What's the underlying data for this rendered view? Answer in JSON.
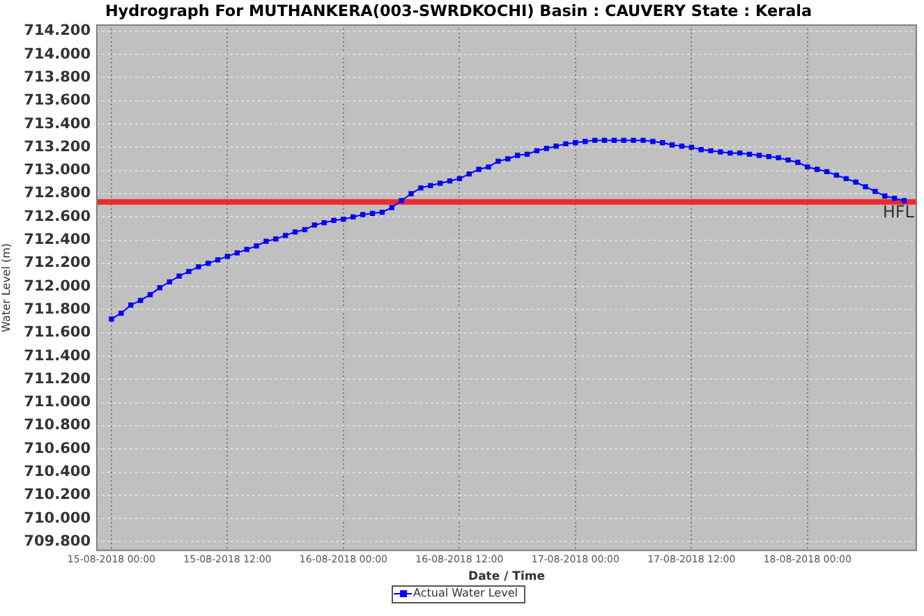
{
  "chart_data": {
    "type": "line",
    "title": "Hydrograph For MUTHANKERA(003-SWRDKOCHI) Basin : CAUVERY State : Kerala",
    "xlabel": "Date / Time",
    "ylabel": "Water Level (m)",
    "x": [
      "2018-08-15T00:00",
      "2018-08-15T01:00",
      "2018-08-15T02:00",
      "2018-08-15T03:00",
      "2018-08-15T04:00",
      "2018-08-15T05:00",
      "2018-08-15T06:00",
      "2018-08-15T07:00",
      "2018-08-15T08:00",
      "2018-08-15T09:00",
      "2018-08-15T10:00",
      "2018-08-15T11:00",
      "2018-08-15T12:00",
      "2018-08-15T13:00",
      "2018-08-15T14:00",
      "2018-08-15T15:00",
      "2018-08-15T16:00",
      "2018-08-15T17:00",
      "2018-08-15T18:00",
      "2018-08-15T19:00",
      "2018-08-15T20:00",
      "2018-08-15T21:00",
      "2018-08-15T22:00",
      "2018-08-15T23:00",
      "2018-08-16T00:00",
      "2018-08-16T01:00",
      "2018-08-16T02:00",
      "2018-08-16T03:00",
      "2018-08-16T04:00",
      "2018-08-16T05:00",
      "2018-08-16T06:00",
      "2018-08-16T07:00",
      "2018-08-16T08:00",
      "2018-08-16T09:00",
      "2018-08-16T10:00",
      "2018-08-16T11:00",
      "2018-08-16T12:00",
      "2018-08-16T13:00",
      "2018-08-16T14:00",
      "2018-08-16T15:00",
      "2018-08-16T16:00",
      "2018-08-16T17:00",
      "2018-08-16T18:00",
      "2018-08-16T19:00",
      "2018-08-16T20:00",
      "2018-08-16T21:00",
      "2018-08-16T22:00",
      "2018-08-16T23:00",
      "2018-08-17T00:00",
      "2018-08-17T01:00",
      "2018-08-17T02:00",
      "2018-08-17T03:00",
      "2018-08-17T04:00",
      "2018-08-17T05:00",
      "2018-08-17T06:00",
      "2018-08-17T07:00",
      "2018-08-17T08:00",
      "2018-08-17T09:00",
      "2018-08-17T10:00",
      "2018-08-17T11:00",
      "2018-08-17T12:00",
      "2018-08-17T13:00",
      "2018-08-17T14:00",
      "2018-08-17T15:00",
      "2018-08-17T16:00",
      "2018-08-17T17:00",
      "2018-08-17T18:00",
      "2018-08-17T19:00",
      "2018-08-17T20:00",
      "2018-08-17T21:00",
      "2018-08-17T22:00",
      "2018-08-17T23:00",
      "2018-08-18T00:00",
      "2018-08-18T01:00",
      "2018-08-18T02:00",
      "2018-08-18T03:00",
      "2018-08-18T04:00",
      "2018-08-18T05:00",
      "2018-08-18T06:00",
      "2018-08-18T07:00",
      "2018-08-18T08:00",
      "2018-08-18T09:00",
      "2018-08-18T10:00"
    ],
    "series": [
      {
        "name": "Actual Water Level",
        "color": "#0000ff",
        "values": [
          711.72,
          711.77,
          711.84,
          711.88,
          711.93,
          711.99,
          712.04,
          712.09,
          712.13,
          712.17,
          712.2,
          712.23,
          712.26,
          712.29,
          712.32,
          712.35,
          712.39,
          712.41,
          712.44,
          712.47,
          712.49,
          712.53,
          712.55,
          712.57,
          712.58,
          712.6,
          712.62,
          712.63,
          712.64,
          712.68,
          712.74,
          712.8,
          712.85,
          712.87,
          712.89,
          712.91,
          712.93,
          712.97,
          713.01,
          713.03,
          713.08,
          713.1,
          713.13,
          713.14,
          713.17,
          713.19,
          713.21,
          713.23,
          713.24,
          713.25,
          713.26,
          713.26,
          713.26,
          713.26,
          713.26,
          713.26,
          713.25,
          713.24,
          713.22,
          713.21,
          713.2,
          713.18,
          713.17,
          713.16,
          713.15,
          713.15,
          713.14,
          713.13,
          713.12,
          713.11,
          713.09,
          713.07,
          713.03,
          713.01,
          712.99,
          712.96,
          712.93,
          712.9,
          712.86,
          712.82,
          712.78,
          712.76,
          712.74
        ]
      }
    ],
    "xlim": [
      "2018-08-14T22:25",
      "2018-08-18T11:20"
    ],
    "xticks": [
      {
        "value": "2018-08-15T00:00",
        "label": "15-08-2018 00:00"
      },
      {
        "value": "2018-08-15T12:00",
        "label": "15-08-2018 12:00"
      },
      {
        "value": "2018-08-16T00:00",
        "label": "16-08-2018 00:00"
      },
      {
        "value": "2018-08-16T12:00",
        "label": "16-08-2018 12:00"
      },
      {
        "value": "2018-08-17T00:00",
        "label": "17-08-2018 00:00"
      },
      {
        "value": "2018-08-17T12:00",
        "label": "17-08-2018 12:00"
      },
      {
        "value": "2018-08-18T00:00",
        "label": "18-08-2018 00:00"
      }
    ],
    "ylim": [
      709.72,
      714.26
    ],
    "yticks": [
      {
        "value": 709.8,
        "label": "709.800"
      },
      {
        "value": 710.0,
        "label": "710.000"
      },
      {
        "value": 710.2,
        "label": "710.200"
      },
      {
        "value": 710.4,
        "label": "710.400"
      },
      {
        "value": 710.6,
        "label": "710.600"
      },
      {
        "value": 710.8,
        "label": "710.800"
      },
      {
        "value": 711.0,
        "label": "711.000"
      },
      {
        "value": 711.2,
        "label": "711.200"
      },
      {
        "value": 711.4,
        "label": "711.400"
      },
      {
        "value": 711.6,
        "label": "711.600"
      },
      {
        "value": 711.8,
        "label": "711.800"
      },
      {
        "value": 712.0,
        "label": "712.000"
      },
      {
        "value": 712.2,
        "label": "712.200"
      },
      {
        "value": 712.4,
        "label": "712.400"
      },
      {
        "value": 712.6,
        "label": "712.600"
      },
      {
        "value": 712.8,
        "label": "712.800"
      },
      {
        "value": 713.0,
        "label": "713.000"
      },
      {
        "value": 713.2,
        "label": "713.200"
      },
      {
        "value": 713.4,
        "label": "713.400"
      },
      {
        "value": 713.6,
        "label": "713.600"
      },
      {
        "value": 713.8,
        "label": "713.800"
      },
      {
        "value": 714.0,
        "label": "714.000"
      },
      {
        "value": 714.2,
        "label": "714.200"
      }
    ],
    "ref_lines": [
      {
        "axis": "y",
        "value": 712.73,
        "label": "HFL",
        "color": "#ee2b2b"
      }
    ],
    "grid": true,
    "legend": "bottom",
    "marker": "square"
  }
}
